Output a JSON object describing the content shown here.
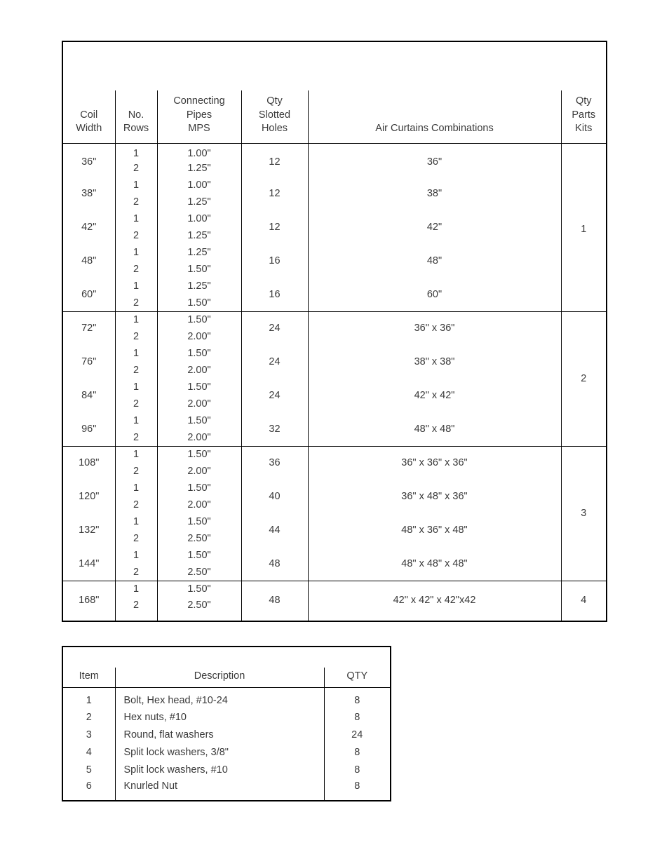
{
  "main": {
    "headers": {
      "coil": "Coil\nWidth",
      "rows": "No.\nRows",
      "pipes": "Connecting\nPipes\nMPS",
      "holes": "Qty\nSlotted\nHoles",
      "combo": "Air Curtains Combinations",
      "kits": "Qty\nParts\nKits"
    },
    "blocks": [
      {
        "kits": "1",
        "items": [
          {
            "coil": "36\"",
            "holes": "12",
            "combo": "36\"",
            "r1": {
              "rows": "1",
              "pipe": "1.00\""
            },
            "r2": {
              "rows": "2",
              "pipe": "1.25\""
            }
          },
          {
            "coil": "38\"",
            "holes": "12",
            "combo": "38\"",
            "r1": {
              "rows": "1",
              "pipe": "1.00\""
            },
            "r2": {
              "rows": "2",
              "pipe": "1.25\""
            }
          },
          {
            "coil": "42\"",
            "holes": "12",
            "combo": "42\"",
            "r1": {
              "rows": "1",
              "pipe": "1.00\""
            },
            "r2": {
              "rows": "2",
              "pipe": "1.25\""
            }
          },
          {
            "coil": "48\"",
            "holes": "16",
            "combo": "48\"",
            "r1": {
              "rows": "1",
              "pipe": "1.25\""
            },
            "r2": {
              "rows": "2",
              "pipe": "1.50\""
            }
          },
          {
            "coil": "60\"",
            "holes": "16",
            "combo": "60\"",
            "r1": {
              "rows": "1",
              "pipe": "1.25\""
            },
            "r2": {
              "rows": "2",
              "pipe": "1.50\""
            }
          }
        ]
      },
      {
        "kits": "2",
        "items": [
          {
            "coil": "72\"",
            "holes": "24",
            "combo": "36\" x 36\"",
            "r1": {
              "rows": "1",
              "pipe": "1.50\""
            },
            "r2": {
              "rows": "2",
              "pipe": "2.00\""
            }
          },
          {
            "coil": "76\"",
            "holes": "24",
            "combo": "38\" x 38\"",
            "r1": {
              "rows": "1",
              "pipe": "1.50\""
            },
            "r2": {
              "rows": "2",
              "pipe": "2.00\""
            }
          },
          {
            "coil": "84\"",
            "holes": "24",
            "combo": "42\" x 42\"",
            "r1": {
              "rows": "1",
              "pipe": "1.50\""
            },
            "r2": {
              "rows": "2",
              "pipe": "2.00\""
            }
          },
          {
            "coil": "96\"",
            "holes": "32",
            "combo": "48\" x 48\"",
            "r1": {
              "rows": "1",
              "pipe": "1.50\""
            },
            "r2": {
              "rows": "2",
              "pipe": "2.00\""
            }
          }
        ]
      },
      {
        "kits": "3",
        "items": [
          {
            "coil": "108\"",
            "holes": "36",
            "combo": "36\" x 36\" x 36\"",
            "r1": {
              "rows": "1",
              "pipe": "1.50\""
            },
            "r2": {
              "rows": "2",
              "pipe": "2.00\""
            }
          },
          {
            "coil": "120\"",
            "holes": "40",
            "combo": "36\" x 48\" x 36\"",
            "r1": {
              "rows": "1",
              "pipe": "1.50\""
            },
            "r2": {
              "rows": "2",
              "pipe": "2.00\""
            }
          },
          {
            "coil": "132\"",
            "holes": "44",
            "combo": "48\" x 36\" x 48\"",
            "r1": {
              "rows": "1",
              "pipe": "1.50\""
            },
            "r2": {
              "rows": "2",
              "pipe": "2.50\""
            }
          },
          {
            "coil": "144\"",
            "holes": "48",
            "combo": "48\" x 48\" x 48\"",
            "r1": {
              "rows": "1",
              "pipe": "1.50\""
            },
            "r2": {
              "rows": "2",
              "pipe": "2.50\""
            }
          }
        ]
      },
      {
        "kits": "4",
        "items": [
          {
            "coil": "168\"",
            "holes": "48",
            "combo": "42\" x 42\" x 42\"x42",
            "r1": {
              "rows": "1",
              "pipe": "1.50\""
            },
            "r2": {
              "rows": "2",
              "pipe": "2.50\""
            }
          }
        ]
      }
    ]
  },
  "parts": {
    "headers": {
      "item": "Item",
      "desc": "Description",
      "qty": "QTY"
    },
    "rows": [
      {
        "item": "1",
        "desc": "Bolt, Hex head, #10-24",
        "qty": "8"
      },
      {
        "item": "2",
        "desc": "Hex nuts, #10",
        "qty": "8"
      },
      {
        "item": "3",
        "desc": "Round, flat washers",
        "qty": "24"
      },
      {
        "item": "4",
        "desc": "Split lock washers, 3/8\"",
        "qty": "8"
      },
      {
        "item": "5",
        "desc": "Split lock washers, #10",
        "qty": "8"
      },
      {
        "item": "6",
        "desc": "Knurled Nut",
        "qty": "8"
      }
    ]
  }
}
